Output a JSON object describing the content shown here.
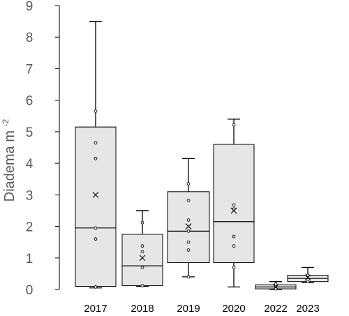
{
  "chart_data": {
    "type": "box",
    "ylabel": "Diadema  m",
    "ylabel_superscript": "-2",
    "ylim": [
      0,
      9
    ],
    "yticks": [
      "0",
      "1",
      "2",
      "3",
      "4",
      "5",
      "6",
      "7",
      "8",
      "9"
    ],
    "grid": false,
    "legend": "none",
    "colors": {
      "box_fill": "#e6e6e6",
      "box_stroke": "#000000",
      "axis": "#000000",
      "tick_text": "#595959"
    },
    "categories": [
      "2017",
      "2018",
      "2019",
      "2020",
      "2022",
      "2023"
    ],
    "boxes": [
      {
        "category": "2017",
        "min": 0.05,
        "q1": 0.1,
        "median": 1.95,
        "q3": 5.15,
        "max": 8.5,
        "mean": 3.0,
        "points": [
          0.08,
          1.6,
          1.95,
          4.15,
          4.65,
          5.65
        ]
      },
      {
        "category": "2018",
        "min": 0.1,
        "q1": 0.12,
        "median": 0.75,
        "q3": 1.75,
        "max": 2.5,
        "mean": 1.0,
        "points": [
          0.12,
          0.7,
          1.2,
          1.38,
          2.12
        ]
      },
      {
        "category": "2019",
        "min": 0.4,
        "q1": 0.85,
        "median": 1.85,
        "q3": 3.1,
        "max": 4.15,
        "mean": 2.0,
        "points": [
          0.4,
          1.25,
          1.5,
          1.85,
          2.2,
          2.82,
          3.35
        ]
      },
      {
        "category": "2020",
        "min": 0.08,
        "q1": 0.85,
        "median": 2.15,
        "q3": 4.6,
        "max": 5.4,
        "mean": 2.5,
        "points": [
          0.7,
          1.38,
          1.68,
          2.55,
          2.68,
          5.22
        ]
      },
      {
        "category": "2022",
        "min": 0.0,
        "q1": 0.02,
        "median": 0.08,
        "q3": 0.15,
        "max": 0.25,
        "mean": 0.08,
        "points": [
          0.02,
          0.1,
          0.17
        ]
      },
      {
        "category": "2023",
        "min": 0.22,
        "q1": 0.25,
        "median": 0.35,
        "q3": 0.45,
        "max": 0.7,
        "mean": 0.38,
        "points": [
          0.25,
          0.45
        ]
      }
    ]
  }
}
